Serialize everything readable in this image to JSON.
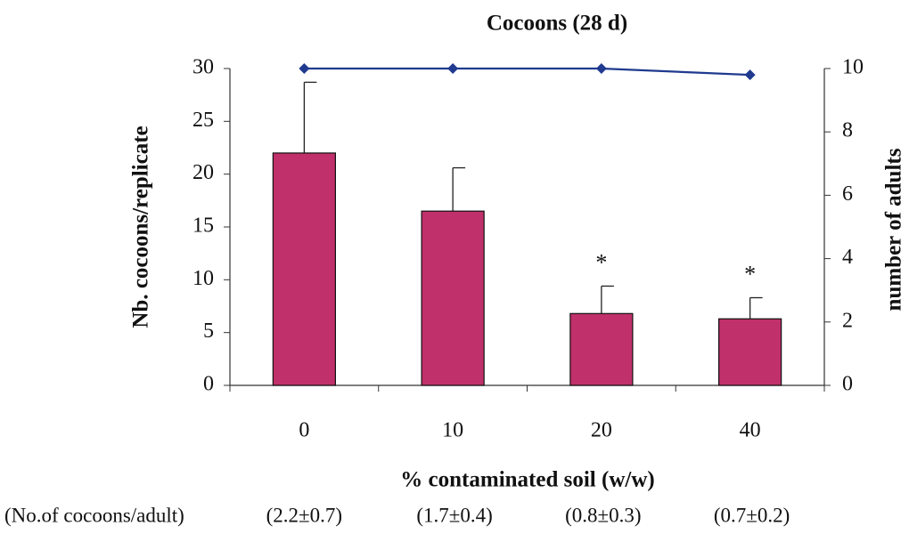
{
  "chart_data": {
    "type": "bar",
    "title": "Cocoons (28 d)",
    "x_label": "% contaminated soil (w/w)",
    "y_label": "Nb. cocoons/replicate",
    "y2_label": "number of adults",
    "categories": [
      "0",
      "10",
      "20",
      "40"
    ],
    "series": [
      {
        "type": "bar",
        "color": "#c0306a",
        "values": [
          22,
          16.5,
          6.8,
          6.3
        ],
        "errors": [
          6.7,
          4.1,
          2.6,
          2.0
        ]
      },
      {
        "type": "line",
        "axis": "y2",
        "color": "#1f3a8f",
        "values": [
          10,
          10,
          10,
          9.8
        ]
      }
    ],
    "significance": [
      null,
      null,
      "*",
      "*"
    ],
    "ylim": [
      0,
      30
    ],
    "yticks": [
      0,
      5,
      10,
      15,
      20,
      25,
      30
    ],
    "y2lim": [
      0,
      10
    ],
    "y2ticks": [
      0,
      2,
      4,
      6,
      8,
      10
    ],
    "footnote_label": "(No.of cocoons/adult)",
    "footnote_values": [
      "(2.2±0.7)",
      "(1.7±0.4)",
      "(0.8±0.3)",
      "(0.7±0.2)"
    ]
  }
}
